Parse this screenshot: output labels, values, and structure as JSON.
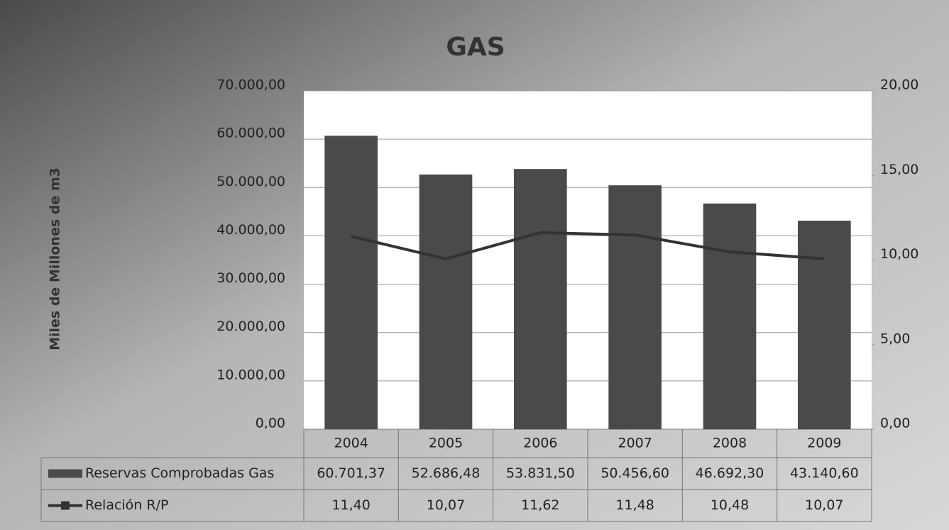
{
  "chart_data": {
    "type": "bar",
    "title": "GAS",
    "y_label": "Miles de Millones de m3",
    "categories": [
      "2004",
      "2005",
      "2006",
      "2007",
      "2008",
      "2009"
    ],
    "series": [
      {
        "name": "Reservas Comprobadas Gas",
        "color": "#4a4a4a",
        "type": "bar",
        "values": [
          60701.37,
          52686.48,
          53831.5,
          50456.6,
          46692.3,
          43140.6
        ],
        "value_labels": [
          "60.701,37",
          "52.686,48",
          "53.831,50",
          "50.456,60",
          "46.692,30",
          "43.140,60"
        ]
      },
      {
        "name": "Relación R/P",
        "color": "#333333",
        "type": "line",
        "axis": "y2",
        "values": [
          11.4,
          10.07,
          11.62,
          11.48,
          10.48,
          10.07
        ],
        "value_labels": [
          "11,40",
          "10,07",
          "11,62",
          "11,48",
          "10,48",
          "10,07"
        ]
      }
    ],
    "ylim": [
      0,
      70000
    ],
    "yticks": [
      {
        "value": 0,
        "label": "0,00"
      },
      {
        "value": 10000,
        "label": "10.000,00"
      },
      {
        "value": 20000,
        "label": "20.000,00"
      },
      {
        "value": 30000,
        "label": "30.000,00"
      },
      {
        "value": 40000,
        "label": "40.000,00"
      },
      {
        "value": 50000,
        "label": "50.000,00"
      },
      {
        "value": 60000,
        "label": "60.000,00"
      },
      {
        "value": 70000,
        "label": "70.000,00"
      }
    ],
    "y2lim": [
      0,
      20
    ],
    "y2ticks": [
      {
        "value": 0,
        "label": "0,00"
      },
      {
        "value": 5,
        "label": "5,00"
      },
      {
        "value": 10,
        "label": "10,00"
      },
      {
        "value": 15,
        "label": "15,00"
      },
      {
        "value": 20,
        "label": "20,00"
      }
    ],
    "grid": true
  }
}
